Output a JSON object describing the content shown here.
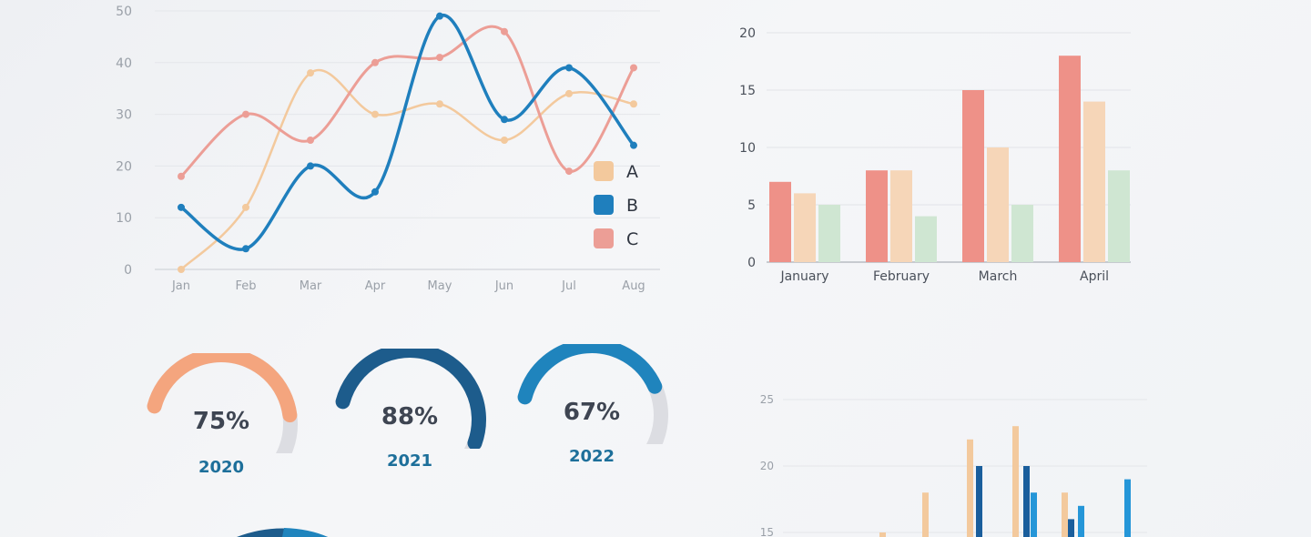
{
  "colors": {
    "line_a": "#f3c99d",
    "line_b": "#1f7fbd",
    "line_c": "#ec9e96",
    "bar_red": "#ee9188",
    "bar_peach": "#f6d6b8",
    "bar_green": "#cfe6d2",
    "gauge_orange": "#f4a57e",
    "gauge_navy": "#1d5c8c",
    "gauge_teal": "#1f84bd",
    "gauge_track": "#dcdde2",
    "bar3_peach": "#f3c99d",
    "bar3_navy": "#1a5e9c",
    "bar3_blue": "#2596d8"
  },
  "chart_data": [
    {
      "type": "line",
      "x": [
        "Jan",
        "Feb",
        "Mar",
        "Apr",
        "May",
        "Jun",
        "Jul",
        "Aug"
      ],
      "ylim": [
        0,
        50
      ],
      "yticks": [
        "0",
        "10",
        "20",
        "30",
        "40",
        "50"
      ],
      "grid": true,
      "legend_position": "right",
      "series": [
        {
          "name": "A",
          "values": [
            0,
            12,
            38,
            30,
            32,
            25,
            34,
            32
          ]
        },
        {
          "name": "B",
          "values": [
            12,
            4,
            20,
            15,
            49,
            29,
            39,
            24
          ]
        },
        {
          "name": "C",
          "values": [
            18,
            30,
            25,
            40,
            41,
            46,
            19,
            39
          ]
        }
      ]
    },
    {
      "type": "bar",
      "categories": [
        "January",
        "February",
        "March",
        "April"
      ],
      "ylim": [
        0,
        20
      ],
      "yticks": [
        "0",
        "5",
        "10",
        "15",
        "20"
      ],
      "grid": true,
      "series": [
        {
          "values": [
            7,
            8,
            15,
            18
          ]
        },
        {
          "values": [
            6,
            8,
            10,
            14
          ]
        },
        {
          "values": [
            5,
            4,
            5,
            8
          ]
        }
      ]
    },
    {
      "type": "bar",
      "ylim": [
        15,
        25
      ],
      "yticks": [
        "15",
        "20",
        "25"
      ],
      "grid": true,
      "series": [
        {
          "values": [
            15,
            18,
            22,
            23,
            18
          ]
        },
        {
          "values": [
            20,
            16,
            20
          ]
        },
        {
          "values": [
            18,
            17,
            19
          ]
        }
      ]
    }
  ],
  "gauges": [
    {
      "value": "75%",
      "year": "2020",
      "fraction": 0.75
    },
    {
      "value": "88%",
      "year": "2021",
      "fraction": 0.88
    },
    {
      "value": "67%",
      "year": "2022",
      "fraction": 0.67
    }
  ]
}
